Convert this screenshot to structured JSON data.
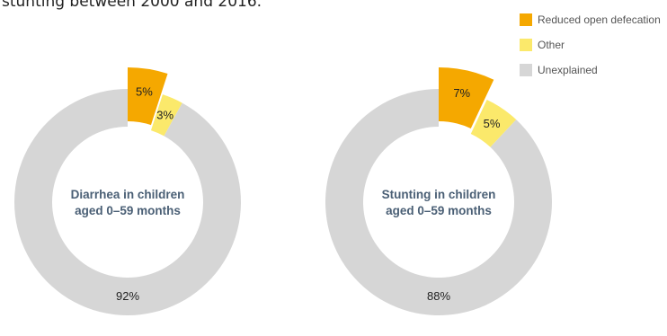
{
  "header": {
    "text": "stunting between 2000 and 2016."
  },
  "legend": {
    "items": [
      {
        "label": "Reduced open defecation",
        "color": "#f5a800"
      },
      {
        "label": "Other",
        "color": "#fbe96b"
      },
      {
        "label": "Unexplained",
        "color": "#d6d6d6"
      }
    ]
  },
  "chart_data": [
    {
      "type": "pie",
      "title": "Diarrhea in children aged 0–59 months",
      "title_lines": [
        "Diarrhea in children",
        "aged 0–59 months"
      ],
      "slices": [
        {
          "name": "Reduced open defecation",
          "value": 5,
          "label": "5%",
          "color": "#f5a800",
          "exploded": true
        },
        {
          "name": "Other",
          "value": 3,
          "label": "3%",
          "color": "#fbe96b",
          "exploded": false
        },
        {
          "name": "Unexplained",
          "value": 92,
          "label": "92%",
          "color": "#d6d6d6",
          "exploded": false
        }
      ]
    },
    {
      "type": "pie",
      "title": "Stunting in children aged 0–59 months",
      "title_lines": [
        "Stunting in children",
        "aged 0–59 months"
      ],
      "slices": [
        {
          "name": "Reduced open defecation",
          "value": 7,
          "label": "7%",
          "color": "#f5a800",
          "exploded": true
        },
        {
          "name": "Other",
          "value": 5,
          "label": "5%",
          "color": "#fbe96b",
          "exploded": false
        },
        {
          "name": "Unexplained",
          "value": 88,
          "label": "88%",
          "color": "#d6d6d6",
          "exploded": false
        }
      ]
    }
  ]
}
